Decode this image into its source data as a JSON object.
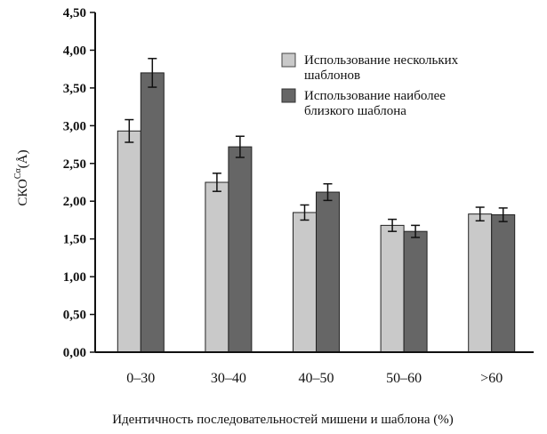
{
  "chart_data": {
    "type": "bar",
    "title": "",
    "xlabel": "Идентичность последовательностей мишени и шаблона (%)",
    "ylabel": "СКО",
    "ylabel_superscript": "Cα",
    "ylabel_unit": "(Å)",
    "ylim": [
      0,
      4.5
    ],
    "yticks": [
      "0,00",
      "0,50",
      "1,00",
      "1,50",
      "2,00",
      "2,50",
      "3,00",
      "3,50",
      "4,00",
      "4,50"
    ],
    "categories": [
      "0–30",
      "30–40",
      "40–50",
      "50–60",
      ">60"
    ],
    "legend_position": "top-right",
    "series": [
      {
        "name": "Использование нескольких шаблонов",
        "name_lines": [
          "Использование нескольких",
          "шаблонов"
        ],
        "color": "#c9c9c9",
        "values": [
          2.93,
          2.25,
          1.85,
          1.68,
          1.83
        ],
        "errors": [
          0.15,
          0.12,
          0.1,
          0.08,
          0.09
        ]
      },
      {
        "name": "Использование наиболее близкого шаблона",
        "name_lines": [
          "Использование наиболее",
          "близкого шаблона"
        ],
        "color": "#666666",
        "values": [
          3.7,
          2.72,
          2.12,
          1.6,
          1.82
        ],
        "errors": [
          0.19,
          0.14,
          0.11,
          0.08,
          0.09
        ]
      }
    ]
  }
}
